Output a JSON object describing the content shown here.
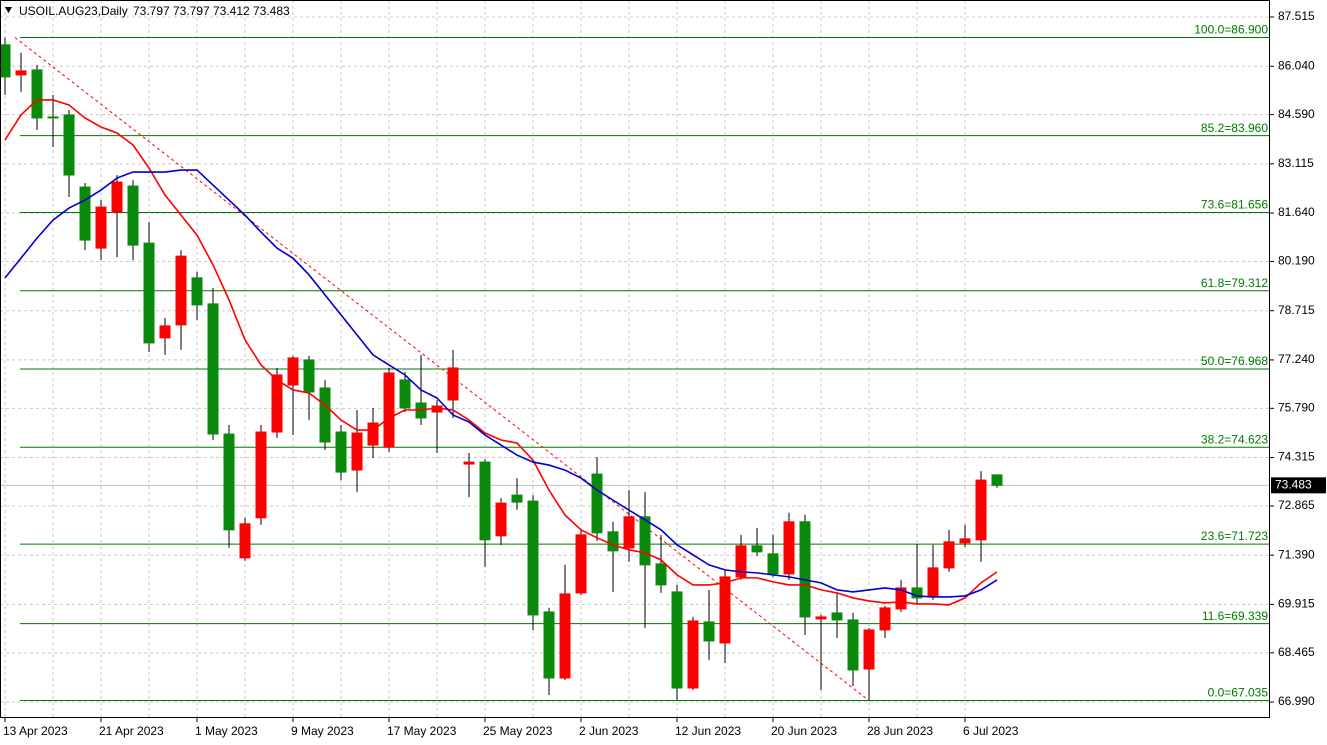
{
  "chart_data": {
    "type": "candlestick",
    "title": "USOIL.AUG23,Daily",
    "categories": [
      "13 Apr 2023",
      null,
      null,
      null,
      null,
      null,
      "21 Apr 2023",
      null,
      null,
      null,
      null,
      null,
      "1 May 2023",
      null,
      null,
      null,
      null,
      null,
      "9 May 2023",
      null,
      null,
      null,
      null,
      null,
      "17 May 2023",
      null,
      null,
      null,
      null,
      null,
      "25 May 2023",
      null,
      null,
      null,
      null,
      null,
      "2 Jun 2023",
      null,
      null,
      null,
      null,
      null,
      "12 Jun 2023",
      null,
      null,
      null,
      null,
      null,
      "20 Jun 2023",
      null,
      null,
      null,
      null,
      null,
      "28 Jun 2023",
      null,
      null,
      null,
      null,
      null,
      "6 Jul 2023",
      null,
      null
    ],
    "open": [
      86.68,
      85.78,
      85.93,
      84.52,
      84.58,
      82.42,
      80.59,
      81.67,
      82.45,
      80.74,
      77.9,
      78.29,
      79.7,
      78.92,
      75.02,
      71.31,
      72.51,
      75.08,
      76.49,
      77.24,
      76.4,
      75.08,
      73.94,
      74.69,
      74.63,
      76.64,
      75.95,
      75.68,
      76.04,
      74.12,
      74.18,
      71.97,
      73.19,
      73.01,
      69.69,
      67.71,
      70.26,
      73.82,
      72.09,
      71.61,
      72.54,
      71.13,
      70.29,
      67.41,
      69.39,
      68.76,
      70.74,
      71.67,
      71.43,
      70.83,
      72.39,
      69.48,
      69.66,
      69.45,
      67.98,
      69.15,
      69.78,
      70.41,
      70.14,
      71.01,
      71.76,
      71.85,
      73.797
    ],
    "high": [
      86.9,
      86.44,
      86.08,
      85.18,
      84.73,
      82.54,
      82.03,
      82.78,
      82.63,
      81.37,
      78.5,
      80.53,
      79.88,
      79.4,
      75.29,
      72.51,
      75.29,
      77.0,
      77.36,
      77.36,
      76.64,
      75.29,
      75.74,
      75.8,
      77.0,
      76.88,
      77.39,
      76.04,
      77.54,
      74.45,
      74.27,
      73.1,
      73.7,
      73.19,
      69.81,
      71.1,
      72.15,
      74.33,
      72.39,
      73.34,
      73.28,
      72.0,
      70.5,
      69.54,
      70.35,
      70.95,
      72.0,
      72.21,
      72.0,
      72.66,
      72.6,
      69.6,
      70.29,
      69.66,
      69.21,
      69.87,
      70.65,
      71.73,
      71.7,
      72.15,
      72.3,
      73.91,
      73.797
    ],
    "low": [
      85.18,
      85.27,
      84.13,
      83.62,
      82.12,
      80.53,
      80.23,
      80.32,
      80.23,
      77.48,
      77.39,
      77.54,
      78.44,
      74.84,
      71.61,
      71.22,
      72.3,
      74.9,
      74.99,
      75.44,
      74.54,
      73.64,
      73.28,
      74.3,
      74.48,
      75.68,
      75.29,
      74.45,
      75.5,
      73.13,
      71.04,
      71.7,
      72.75,
      69.15,
      67.2,
      67.65,
      70.2,
      71.82,
      70.29,
      71.19,
      69.21,
      70.26,
      67.05,
      67.35,
      68.25,
      68.16,
      70.65,
      71.37,
      70.74,
      70.65,
      69.0,
      67.35,
      68.91,
      67.47,
      67.035,
      68.91,
      69.69,
      69.9,
      70.05,
      70.89,
      71.64,
      71.19,
      73.412
    ],
    "close": [
      85.72,
      85.9,
      84.49,
      84.49,
      82.78,
      80.83,
      81.82,
      82.57,
      80.68,
      77.75,
      78.26,
      80.35,
      78.89,
      75.02,
      72.15,
      72.33,
      75.08,
      76.79,
      77.3,
      76.28,
      74.78,
      73.88,
      75.05,
      75.35,
      76.85,
      75.8,
      75.5,
      75.86,
      77.0,
      74.18,
      71.85,
      72.95,
      72.98,
      69.6,
      67.71,
      70.23,
      72.0,
      72.06,
      71.52,
      72.54,
      71.1,
      70.5,
      67.41,
      69.42,
      68.82,
      70.74,
      71.67,
      71.49,
      70.83,
      72.39,
      69.54,
      69.54,
      69.45,
      67.95,
      69.15,
      69.81,
      70.41,
      70.11,
      71.01,
      71.79,
      71.88,
      73.64,
      73.483
    ],
    "up_color": "#ff0000",
    "down_color": "#0a8a0a",
    "lines": [
      {
        "color": "#ff0000",
        "values": [
          83.83,
          84.58,
          85.03,
          85.03,
          84.88,
          84.49,
          84.22,
          84.04,
          83.68,
          82.99,
          82.18,
          81.58,
          80.98,
          80.09,
          79.04,
          77.84,
          77.09,
          76.64,
          76.34,
          76.25,
          75.89,
          75.44,
          75.14,
          75.14,
          75.5,
          75.74,
          75.74,
          75.8,
          75.74,
          75.44,
          75.05,
          74.84,
          74.75,
          74.24,
          73.34,
          72.59,
          72.15,
          71.91,
          71.7,
          71.55,
          71.46,
          71.25,
          70.8,
          70.5,
          70.5,
          70.56,
          70.71,
          70.71,
          70.59,
          70.5,
          70.5,
          70.35,
          70.26,
          70.11,
          70.02,
          69.96,
          69.99,
          69.93,
          69.93,
          69.9,
          70.11,
          70.56,
          70.89
        ]
      },
      {
        "color": "#0000cd",
        "values": [
          79.7,
          80.29,
          80.89,
          81.43,
          81.79,
          82.03,
          82.33,
          82.69,
          82.87,
          82.87,
          82.87,
          82.93,
          82.93,
          82.48,
          82.03,
          81.58,
          81.07,
          80.59,
          80.29,
          79.79,
          79.19,
          78.59,
          77.99,
          77.39,
          77.09,
          76.79,
          76.34,
          76.1,
          75.59,
          75.38,
          74.99,
          74.69,
          74.39,
          74.18,
          74.09,
          73.94,
          73.7,
          73.34,
          73.04,
          72.74,
          72.45,
          72.15,
          71.7,
          71.4,
          71.1,
          70.95,
          70.89,
          70.86,
          70.8,
          70.74,
          70.65,
          70.56,
          70.35,
          70.29,
          70.35,
          70.41,
          70.35,
          70.17,
          70.14,
          70.14,
          70.17,
          70.35,
          70.65
        ]
      }
    ],
    "fibonacci": {
      "color": "#007a00",
      "trend_color": "#ff0000",
      "levels": [
        {
          "label": "100.0=86.900",
          "value": 86.9
        },
        {
          "label": "85.2=83.960",
          "value": 83.96
        },
        {
          "label": "73.6=81.656",
          "value": 81.656
        },
        {
          "label": "61.8=79.312",
          "value": 79.312
        },
        {
          "label": "50.0=76.968",
          "value": 76.968
        },
        {
          "label": "38.2=74.623",
          "value": 74.623
        },
        {
          "label": "23.6=71.723",
          "value": 71.723
        },
        {
          "label": "11.6=69.339",
          "value": 69.339
        },
        {
          "label": "0.0=67.035",
          "value": 67.035
        }
      ]
    },
    "ylim": [
      66.512,
      88.024
    ],
    "yticks": [
      87.515,
      {
        "value": 86.04,
        "label": "86.040"
      },
      {
        "value": 84.59,
        "label": "84.590"
      },
      83.115,
      {
        "value": 81.64,
        "label": "81.640"
      },
      {
        "value": 80.19,
        "label": "80.190"
      },
      78.715,
      {
        "value": 77.24,
        "label": "77.240"
      },
      {
        "value": 75.79,
        "label": "75.790"
      },
      74.315,
      72.865,
      {
        "value": 71.39,
        "label": "71.390"
      },
      69.915,
      68.465,
      {
        "value": 66.99,
        "label": "66.990"
      }
    ],
    "grid": true
  }
}
